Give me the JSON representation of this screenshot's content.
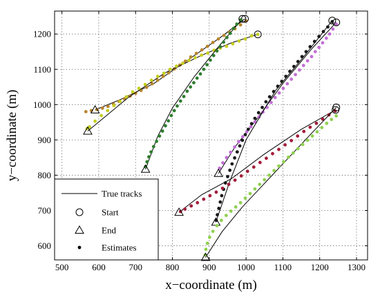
{
  "chart_data": {
    "type": "scatter",
    "title": "",
    "xlabel": "x−coordinate (m)",
    "ylabel": "y−coordinate (m)",
    "xlim": [
      480,
      1330
    ],
    "ylim": [
      560,
      1265
    ],
    "xticks": [
      500,
      600,
      700,
      800,
      900,
      1000,
      1100,
      1200,
      1300
    ],
    "yticks": [
      600,
      700,
      800,
      900,
      1000,
      1100,
      1200
    ],
    "grid": true,
    "legend_position": "bottom-left",
    "legend": [
      {
        "key": "true",
        "label": "True tracks"
      },
      {
        "key": "start",
        "label": "Start"
      },
      {
        "key": "end",
        "label": "End"
      },
      {
        "key": "est",
        "label": "Estimates"
      }
    ],
    "series": [
      {
        "color": "#b8862e",
        "start": [
          997,
          1243
        ],
        "end": [
          590,
          985
        ],
        "true_track": [
          [
            997,
            1243
          ],
          [
            930,
            1190
          ],
          [
            840,
            1125
          ],
          [
            750,
            1060
          ],
          [
            660,
            1015
          ],
          [
            590,
            985
          ]
        ],
        "estimates": [
          [
            1000,
            1237
          ],
          [
            985,
            1226
          ],
          [
            970,
            1215
          ],
          [
            955,
            1205
          ],
          [
            940,
            1196
          ],
          [
            925,
            1186
          ],
          [
            910,
            1176
          ],
          [
            895,
            1165
          ],
          [
            880,
            1155
          ],
          [
            865,
            1145
          ],
          [
            850,
            1135
          ],
          [
            835,
            1123
          ],
          [
            820,
            1112
          ],
          [
            805,
            1101
          ],
          [
            790,
            1090
          ],
          [
            775,
            1080
          ],
          [
            760,
            1069
          ],
          [
            745,
            1059
          ],
          [
            730,
            1049
          ],
          [
            715,
            1040
          ],
          [
            700,
            1032
          ],
          [
            685,
            1024
          ],
          [
            670,
            1016
          ],
          [
            655,
            1009
          ],
          [
            640,
            1001
          ],
          [
            625,
            995
          ],
          [
            610,
            990
          ],
          [
            595,
            986
          ],
          [
            580,
            983
          ],
          [
            565,
            980
          ]
        ]
      },
      {
        "color": "#c5cf1e",
        "start": [
          1032,
          1199
        ],
        "end": [
          570,
          925
        ],
        "true_track": [
          [
            1032,
            1199
          ],
          [
            960,
            1175
          ],
          [
            880,
            1140
          ],
          [
            780,
            1090
          ],
          [
            680,
            1020
          ],
          [
            570,
            925
          ]
        ],
        "estimates": [
          [
            1032,
            1199
          ],
          [
            1015,
            1195
          ],
          [
            998,
            1186
          ],
          [
            981,
            1180
          ],
          [
            964,
            1172
          ],
          [
            947,
            1165
          ],
          [
            930,
            1160
          ],
          [
            913,
            1154
          ],
          [
            896,
            1146
          ],
          [
            879,
            1140
          ],
          [
            862,
            1133
          ],
          [
            845,
            1125
          ],
          [
            828,
            1117
          ],
          [
            811,
            1109
          ],
          [
            794,
            1100
          ],
          [
            777,
            1089
          ],
          [
            760,
            1080
          ],
          [
            743,
            1069
          ],
          [
            726,
            1057
          ],
          [
            709,
            1046
          ],
          [
            692,
            1036
          ],
          [
            675,
            1022
          ],
          [
            658,
            1009
          ],
          [
            641,
            997
          ],
          [
            624,
            983
          ],
          [
            607,
            969
          ],
          [
            590,
            953
          ],
          [
            575,
            937
          ],
          [
            568,
            932
          ]
        ]
      },
      {
        "color": "#2e7d2e",
        "start": [
          990,
          1243
        ],
        "end": [
          727,
          817
        ],
        "true_track": [
          [
            990,
            1243
          ],
          [
            930,
            1170
          ],
          [
            860,
            1080
          ],
          [
            800,
            990
          ],
          [
            760,
            910
          ],
          [
            727,
            817
          ]
        ],
        "estimates": [
          [
            985,
            1240
          ],
          [
            975,
            1228
          ],
          [
            966,
            1216
          ],
          [
            957,
            1202
          ],
          [
            948,
            1190
          ],
          [
            939,
            1177
          ],
          [
            930,
            1164
          ],
          [
            921,
            1152
          ],
          [
            912,
            1139
          ],
          [
            903,
            1126
          ],
          [
            894,
            1113
          ],
          [
            885,
            1100
          ],
          [
            876,
            1087
          ],
          [
            867,
            1075
          ],
          [
            858,
            1062
          ],
          [
            849,
            1050
          ],
          [
            840,
            1038
          ],
          [
            831,
            1023
          ],
          [
            822,
            1010
          ],
          [
            813,
            996
          ],
          [
            805,
            983
          ],
          [
            797,
            969
          ],
          [
            789,
            954
          ],
          [
            781,
            940
          ],
          [
            773,
            925
          ],
          [
            765,
            911
          ],
          [
            757,
            896
          ],
          [
            749,
            881
          ],
          [
            742,
            866
          ],
          [
            736,
            852
          ],
          [
            731,
            838
          ],
          [
            727,
            824
          ]
        ]
      },
      {
        "color": "#c36fd6",
        "start": [
          1245,
          1233
        ],
        "end": [
          925,
          805
        ],
        "true_track": [
          [
            1245,
            1233
          ],
          [
            1180,
            1160
          ],
          [
            1100,
            1060
          ],
          [
            1030,
            960
          ],
          [
            970,
            880
          ],
          [
            925,
            805
          ]
        ],
        "estimates": [
          [
            1245,
            1228
          ],
          [
            1236,
            1214
          ],
          [
            1227,
            1200
          ],
          [
            1218,
            1188
          ],
          [
            1208,
            1175
          ],
          [
            1198,
            1162
          ],
          [
            1188,
            1150
          ],
          [
            1178,
            1136
          ],
          [
            1167,
            1124
          ],
          [
            1156,
            1111
          ],
          [
            1145,
            1098
          ],
          [
            1134,
            1085
          ],
          [
            1123,
            1072
          ],
          [
            1112,
            1059
          ],
          [
            1101,
            1046
          ],
          [
            1090,
            1033
          ],
          [
            1079,
            1020
          ],
          [
            1068,
            1006
          ],
          [
            1057,
            992
          ],
          [
            1046,
            979
          ],
          [
            1035,
            965
          ],
          [
            1024,
            951
          ],
          [
            1013,
            937
          ],
          [
            1002,
            923
          ],
          [
            991,
            909
          ],
          [
            980,
            895
          ],
          [
            969,
            880
          ],
          [
            958,
            865
          ],
          [
            947,
            850
          ],
          [
            937,
            835
          ],
          [
            928,
            820
          ]
        ]
      },
      {
        "color": "#1a1a1a",
        "start": [
          1234,
          1238
        ],
        "end": [
          918,
          667
        ],
        "true_track": [
          [
            1234,
            1238
          ],
          [
            1160,
            1140
          ],
          [
            1080,
            1040
          ],
          [
            1000,
            900
          ],
          [
            955,
            780
          ],
          [
            918,
            667
          ]
        ],
        "estimates": [
          [
            1234,
            1235
          ],
          [
            1222,
            1220
          ],
          [
            1210,
            1207
          ],
          [
            1198,
            1193
          ],
          [
            1186,
            1179
          ],
          [
            1174,
            1164
          ],
          [
            1163,
            1150
          ],
          [
            1152,
            1136
          ],
          [
            1141,
            1122
          ],
          [
            1130,
            1108
          ],
          [
            1119,
            1094
          ],
          [
            1108,
            1080
          ],
          [
            1097,
            1066
          ],
          [
            1086,
            1052
          ],
          [
            1075,
            1037
          ],
          [
            1064,
            1022
          ],
          [
            1054,
            1008
          ],
          [
            1044,
            992
          ],
          [
            1034,
            977
          ],
          [
            1024,
            961
          ],
          [
            1015,
            946
          ],
          [
            1006,
            930
          ],
          [
            998,
            915
          ],
          [
            990,
            899
          ],
          [
            983,
            883
          ],
          [
            976,
            866
          ],
          [
            969,
            849
          ],
          [
            962,
            832
          ],
          [
            956,
            814
          ],
          [
            950,
            796
          ],
          [
            944,
            778
          ],
          [
            939,
            760
          ],
          [
            934,
            742
          ],
          [
            930,
            724
          ],
          [
            926,
            706
          ],
          [
            922,
            688
          ],
          [
            919,
            672
          ]
        ]
      },
      {
        "color": "#a31d3a",
        "start": [
          1243,
          985
        ],
        "end": [
          818,
          695
        ],
        "true_track": [
          [
            1243,
            985
          ],
          [
            1150,
            930
          ],
          [
            1050,
            860
          ],
          [
            960,
            790
          ],
          [
            880,
            745
          ],
          [
            818,
            695
          ]
        ],
        "estimates": [
          [
            1242,
            982
          ],
          [
            1225,
            971
          ],
          [
            1208,
            959
          ],
          [
            1191,
            947
          ],
          [
            1174,
            936
          ],
          [
            1157,
            924
          ],
          [
            1140,
            911
          ],
          [
            1123,
            898
          ],
          [
            1106,
            886
          ],
          [
            1089,
            873
          ],
          [
            1072,
            861
          ],
          [
            1055,
            848
          ],
          [
            1038,
            836
          ],
          [
            1021,
            823
          ],
          [
            1004,
            811
          ],
          [
            987,
            798
          ],
          [
            970,
            786
          ],
          [
            953,
            774
          ],
          [
            936,
            763
          ],
          [
            919,
            752
          ],
          [
            902,
            742
          ],
          [
            885,
            732
          ],
          [
            868,
            722
          ],
          [
            851,
            713
          ],
          [
            834,
            704
          ],
          [
            822,
            697
          ]
        ]
      },
      {
        "color": "#8fd14f",
        "start": [
          1245,
          992
        ],
        "end": [
          890,
          567
        ],
        "true_track": [
          [
            1245,
            992
          ],
          [
            1170,
            910
          ],
          [
            1080,
            810
          ],
          [
            990,
            710
          ],
          [
            935,
            640
          ],
          [
            890,
            567
          ]
        ],
        "estimates": [
          [
            1245,
            968
          ],
          [
            1232,
            958
          ],
          [
            1219,
            947
          ],
          [
            1206,
            935
          ],
          [
            1193,
            923
          ],
          [
            1180,
            911
          ],
          [
            1167,
            899
          ],
          [
            1154,
            887
          ],
          [
            1141,
            875
          ],
          [
            1128,
            863
          ],
          [
            1115,
            851
          ],
          [
            1102,
            838
          ],
          [
            1089,
            826
          ],
          [
            1076,
            813
          ],
          [
            1063,
            800
          ],
          [
            1050,
            787
          ],
          [
            1037,
            774
          ],
          [
            1024,
            761
          ],
          [
            1011,
            748
          ],
          [
            998,
            735
          ],
          [
            985,
            722
          ],
          [
            972,
            710
          ],
          [
            959,
            698
          ],
          [
            946,
            686
          ],
          [
            933,
            672
          ],
          [
            921,
            657
          ],
          [
            910,
            641
          ],
          [
            901,
            624
          ],
          [
            895,
            607
          ],
          [
            891,
            590
          ],
          [
            889,
            574
          ]
        ]
      }
    ]
  }
}
